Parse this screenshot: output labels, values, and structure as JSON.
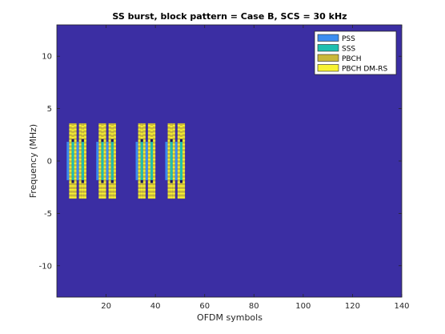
{
  "chart_data": {
    "type": "heatmap",
    "title": "SS burst, block pattern = Case B, SCS = 30 kHz",
    "xlabel": "OFDM symbols",
    "ylabel": "Frequency (MHz)",
    "xlim": [
      0,
      140
    ],
    "ylim": [
      -13,
      13
    ],
    "xticks": [
      20,
      40,
      60,
      80,
      100,
      120,
      140
    ],
    "yticks": [
      -10,
      -5,
      0,
      5,
      10
    ],
    "grid": false,
    "legend_position": "top-right",
    "colors": {
      "background": "#3b2ea3",
      "PSS": "#3b8df0",
      "SSS": "#1fbfb0",
      "PBCH": "#c9b83a",
      "PBCH DM-RS": "#f7f232"
    },
    "legend": [
      "PSS",
      "SSS",
      "PBCH",
      "PBCH DM-RS"
    ],
    "ss_blocks": [
      {
        "start_symbol": 4
      },
      {
        "start_symbol": 8
      },
      {
        "start_symbol": 16
      },
      {
        "start_symbol": 20
      },
      {
        "start_symbol": 32
      },
      {
        "start_symbol": 36
      },
      {
        "start_symbol": 44
      },
      {
        "start_symbol": 48
      }
    ],
    "block_layout": {
      "pss": {
        "symbol_offset": 0,
        "freq_range_mhz": [
          -1.83,
          1.83
        ]
      },
      "pbch_full": [
        {
          "symbol_offset": 1,
          "freq_range_mhz": [
            -3.6,
            3.6
          ]
        },
        {
          "symbol_offset": 3,
          "freq_range_mhz": [
            -3.6,
            3.6
          ]
        }
      ],
      "sss": {
        "symbol_offset": 2,
        "freq_range_mhz": [
          -1.83,
          1.83
        ]
      },
      "pbch_edges": [
        {
          "symbol_offset": 2,
          "freq_range_mhz": [
            -3.6,
            -2.09
          ]
        },
        {
          "symbol_offset": 2,
          "freq_range_mhz": [
            2.09,
            3.6
          ]
        }
      ]
    }
  }
}
